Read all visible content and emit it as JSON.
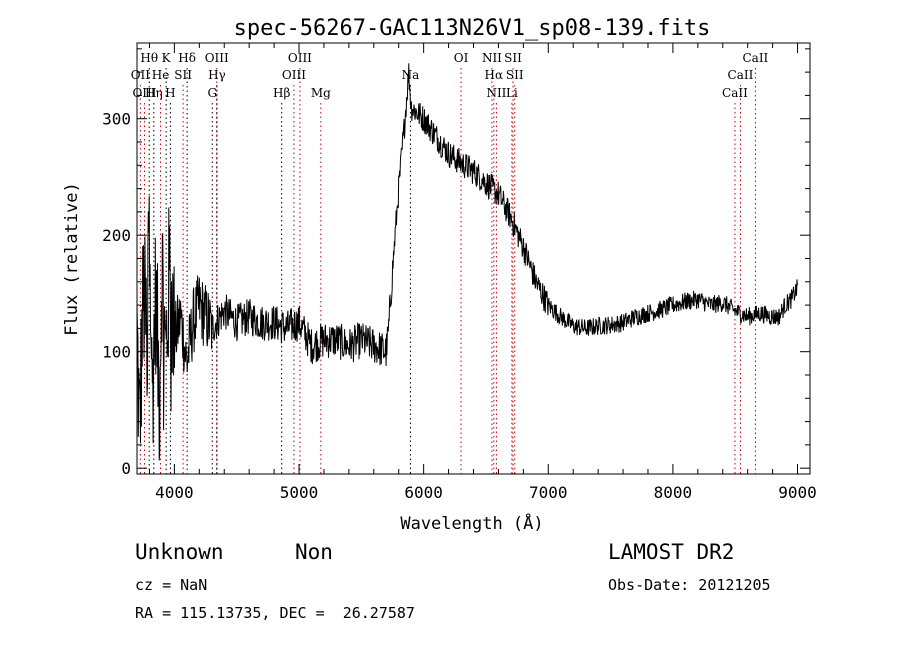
{
  "chart_data": {
    "type": "line",
    "title": "spec-56267-GAC113N26V1_sp08-139.fits",
    "xlabel": "Wavelength (Å)",
    "ylabel": "Flux (relative)",
    "xlim": [
      3700,
      9100
    ],
    "ylim": [
      -5,
      365
    ],
    "xticks": [
      4000,
      5000,
      6000,
      7000,
      8000,
      9000
    ],
    "yticks": [
      0,
      100,
      200,
      300
    ],
    "x_minor_step": 200,
    "y_minor_step": 20,
    "grid": false,
    "series": [
      {
        "color": "#000000",
        "anchors": [
          [
            3700,
            120
          ],
          [
            3720,
            30
          ],
          [
            3750,
            150
          ],
          [
            3780,
            110
          ],
          [
            3800,
            260
          ],
          [
            3820,
            60
          ],
          [
            3850,
            150
          ],
          [
            3880,
            60
          ],
          [
            3900,
            180
          ],
          [
            3930,
            90
          ],
          [
            3960,
            170
          ],
          [
            4000,
            110
          ],
          [
            4050,
            130
          ],
          [
            4100,
            90
          ],
          [
            4150,
            125
          ],
          [
            4200,
            140
          ],
          [
            4300,
            120
          ],
          [
            4400,
            135
          ],
          [
            4500,
            125
          ],
          [
            4600,
            130
          ],
          [
            4700,
            125
          ],
          [
            4800,
            125
          ],
          [
            4900,
            120
          ],
          [
            5000,
            125
          ],
          [
            5100,
            105
          ],
          [
            5200,
            110
          ],
          [
            5300,
            110
          ],
          [
            5400,
            105
          ],
          [
            5500,
            110
          ],
          [
            5600,
            105
          ],
          [
            5700,
            100
          ],
          [
            5720,
            120
          ],
          [
            5750,
            170
          ],
          [
            5800,
            240
          ],
          [
            5850,
            300
          ],
          [
            5880,
            340
          ],
          [
            5900,
            310
          ],
          [
            6000,
            300
          ],
          [
            6100,
            285
          ],
          [
            6200,
            270
          ],
          [
            6300,
            262
          ],
          [
            6400,
            255
          ],
          [
            6500,
            245
          ],
          [
            6600,
            235
          ],
          [
            6700,
            215
          ],
          [
            6800,
            190
          ],
          [
            6900,
            160
          ],
          [
            7000,
            140
          ],
          [
            7100,
            130
          ],
          [
            7200,
            122
          ],
          [
            7300,
            120
          ],
          [
            7400,
            122
          ],
          [
            7500,
            123
          ],
          [
            7600,
            125
          ],
          [
            7700,
            130
          ],
          [
            7800,
            133
          ],
          [
            7900,
            136
          ],
          [
            8000,
            140
          ],
          [
            8100,
            143
          ],
          [
            8200,
            145
          ],
          [
            8300,
            140
          ],
          [
            8400,
            142
          ],
          [
            8500,
            135
          ],
          [
            8600,
            130
          ],
          [
            8700,
            133
          ],
          [
            8800,
            130
          ],
          [
            8850,
            130
          ],
          [
            8900,
            140
          ],
          [
            8950,
            145
          ],
          [
            9000,
            155
          ]
        ]
      }
    ],
    "line_markers": [
      {
        "label": "Hθ",
        "wavelength": 3798,
        "row": 1,
        "line_color": "#000000"
      },
      {
        "label": "OII",
        "wavelength": 3727,
        "row": 2,
        "line_color": "#cc0000"
      },
      {
        "label": "OIII",
        "wavelength": 3760,
        "row": 3,
        "line_color": "#cc0000"
      },
      {
        "label": "Hη",
        "wavelength": 3835,
        "row": 3,
        "line_color": "#000000"
      },
      {
        "label": "He",
        "wavelength": 3889,
        "row": 2,
        "line_color": "#cc0000"
      },
      {
        "label": "K",
        "wavelength": 3934,
        "row": 1,
        "line_color": "#000000"
      },
      {
        "label": "H",
        "wavelength": 3968,
        "row": 3,
        "line_color": "#000000"
      },
      {
        "label": "SII",
        "wavelength": 4070,
        "row": 2,
        "line_color": "#cc0000"
      },
      {
        "label": "Hδ",
        "wavelength": 4102,
        "row": 1,
        "line_color": "#000000"
      },
      {
        "label": "OIII",
        "wavelength": 4340,
        "row": 1,
        "line_color": "#cc0000"
      },
      {
        "label": "Hγ",
        "wavelength": 4341,
        "row": 2,
        "line_color": "#000000"
      },
      {
        "label": "G",
        "wavelength": 4304,
        "row": 3,
        "line_color": "#000000"
      },
      {
        "label": "Hβ",
        "wavelength": 4861,
        "row": 3,
        "line_color": "#000000"
      },
      {
        "label": "OIII",
        "wavelength": 5007,
        "row": 1,
        "line_color": "#cc0000"
      },
      {
        "label": "OIII",
        "wavelength": 4959,
        "row": 2,
        "line_color": "#cc0000"
      },
      {
        "label": "Mg",
        "wavelength": 5175,
        "row": 3,
        "line_color": "#cc0000"
      },
      {
        "label": "Na",
        "wavelength": 5894,
        "row": 2,
        "line_color": "#000000"
      },
      {
        "label": "OI",
        "wavelength": 6300,
        "row": 1,
        "line_color": "#cc0000"
      },
      {
        "label": "NII",
        "wavelength": 6548,
        "row": 1,
        "line_color": "#cc0000"
      },
      {
        "label": "SII",
        "wavelength": 6717,
        "row": 1,
        "line_color": "#cc0000"
      },
      {
        "label": "Hα",
        "wavelength": 6563,
        "row": 2,
        "line_color": "#cc0000"
      },
      {
        "label": "SII",
        "wavelength": 6731,
        "row": 2,
        "line_color": "#cc0000"
      },
      {
        "label": "NII",
        "wavelength": 6584,
        "row": 3,
        "line_color": "#cc0000"
      },
      {
        "label": "Li",
        "wavelength": 6708,
        "row": 3,
        "line_color": "#cc0000"
      },
      {
        "label": "CaII",
        "wavelength": 8662,
        "row": 1,
        "line_color": "#cc0000"
      },
      {
        "label": "CaII",
        "wavelength": 8542,
        "row": 2,
        "line_color": "#cc0000"
      },
      {
        "label": "CaII",
        "wavelength": 8498,
        "row": 3,
        "line_color": "#cc0000"
      }
    ]
  },
  "info": {
    "classification": "Unknown",
    "subclass": "Non",
    "survey": "LAMOST DR2",
    "redshift": "cz = NaN",
    "obs_date": "Obs-Date: 20121205",
    "coords": "RA = 115.13735, DEC =  26.27587"
  }
}
